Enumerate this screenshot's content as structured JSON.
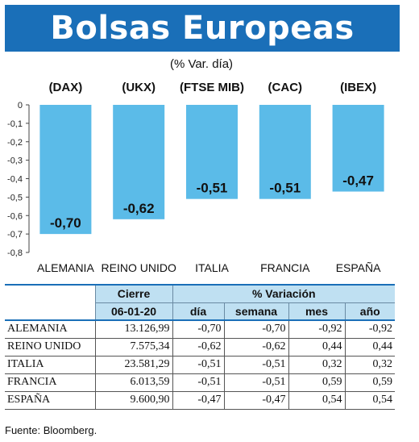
{
  "title": "Bolsas Europeas",
  "subtitle": "(% Var. día)",
  "colors": {
    "title_bar": "#1a6fb8",
    "bar": "#5bbbe8",
    "table_header": "#bfe0f2"
  },
  "chart_data": {
    "type": "bar",
    "categories": [
      "ALEMANIA",
      "REINO UNIDO",
      "ITALIA",
      "FRANCIA",
      "ESPAÑA"
    ],
    "index_labels": [
      "(DAX)",
      "(UKX)",
      "(FTSE MIB)",
      "(CAC)",
      "(IBEX)"
    ],
    "values": [
      -0.7,
      -0.62,
      -0.51,
      -0.51,
      -0.47
    ],
    "value_labels": [
      "-0,70",
      "-0,62",
      "-0,51",
      "-0,51",
      "-0,47"
    ],
    "ylim": [
      -0.8,
      0
    ],
    "yticks": [
      "0",
      "-0,1",
      "-0,2",
      "-0,3",
      "-0,4",
      "-0,5",
      "-0,6",
      "-0,7",
      "-0,8"
    ],
    "grid": false
  },
  "table": {
    "group_headers": [
      "Cierre",
      "% Variación"
    ],
    "date": "06-01-20",
    "columns": [
      "día",
      "semana",
      "mes",
      "año"
    ],
    "rows": [
      {
        "country": "ALEMANIA",
        "close": "13.126,99",
        "day": "-0,70",
        "week": "-0,70",
        "month": "-0,92",
        "year": "-0,92"
      },
      {
        "country": "REINO UNIDO",
        "close": "7.575,34",
        "day": "-0,62",
        "week": "-0,62",
        "month": "0,44",
        "year": "0,44"
      },
      {
        "country": "ITALIA",
        "close": "23.581,29",
        "day": "-0,51",
        "week": "-0,51",
        "month": "0,32",
        "year": "0,32"
      },
      {
        "country": "FRANCIA",
        "close": "6.013,59",
        "day": "-0,51",
        "week": "-0,51",
        "month": "0,59",
        "year": "0,59"
      },
      {
        "country": "ESPAÑA",
        "close": "9.600,90",
        "day": "-0,47",
        "week": "-0,47",
        "month": "0,54",
        "year": "0,54"
      }
    ]
  },
  "source": "Fuente: Bloomberg."
}
